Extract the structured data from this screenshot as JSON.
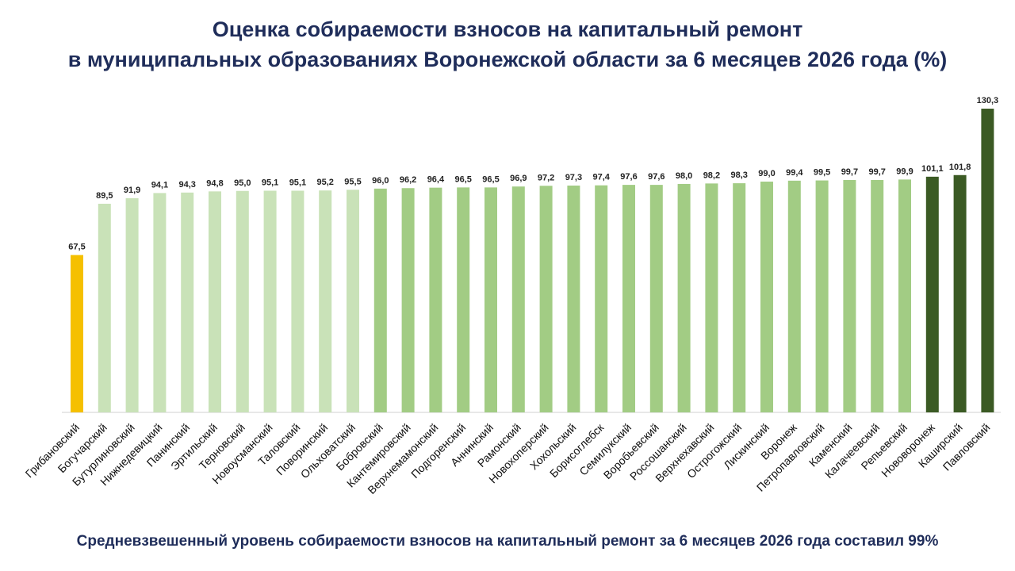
{
  "title": {
    "line1": "Оценка собираемости взносов на капитальный ремонт",
    "line2": "в муниципальных образованиях Воронежской области за 6 месяцев 2026 года (%)"
  },
  "footer": "Средневзвешенный уровень собираемости взносов на капитальный ремонт за 6 месяцев 2026 года составил 99%",
  "colors": {
    "low": "#f5c000",
    "light": "#c9e2b8",
    "mid": "#a2cc84",
    "dark": "#3b5a24"
  },
  "chart_data": {
    "type": "bar",
    "categories": [
      "Грибановский",
      "Богучарский",
      "Бутурлиновский",
      "Нижнедевицкий",
      "Панинский",
      "Эртильский",
      "Терновский",
      "Новоусманский",
      "Таловский",
      "Поворинский",
      "Ольховатский",
      "Бобровский",
      "Кантемировский",
      "Верхнемамонский",
      "Подгоренский",
      "Аннинский",
      "Рамонский",
      "Новохоперский",
      "Хохольский",
      "Борисоглебск",
      "Семилукский",
      "Воробьевский",
      "Россошанский",
      "Верхнехавский",
      "Острогожский",
      "Лискинский",
      "Воронеж",
      "Петропавловский",
      "Каменский",
      "Калачеевский",
      "Репьевский",
      "Нововоронеж",
      "Каширский",
      "Павловский"
    ],
    "values": [
      67.5,
      89.5,
      91.9,
      94.1,
      94.3,
      94.8,
      95.0,
      95.1,
      95.1,
      95.2,
      95.5,
      96.0,
      96.2,
      96.4,
      96.5,
      96.5,
      96.9,
      97.2,
      97.3,
      97.4,
      97.6,
      97.6,
      98.0,
      98.2,
      98.3,
      99.0,
      99.4,
      99.5,
      99.7,
      99.7,
      99.9,
      101.1,
      101.8,
      130.3
    ],
    "labels": [
      "67,5",
      "89,5",
      "91,9",
      "94,1",
      "94,3",
      "94,8",
      "95,0",
      "95,1",
      "95,1",
      "95,2",
      "95,5",
      "96,0",
      "96,2",
      "96,4",
      "96,5",
      "96,5",
      "96,9",
      "97,2",
      "97,3",
      "97,4",
      "97,6",
      "97,6",
      "98,0",
      "98,2",
      "98,3",
      "99,0",
      "99,4",
      "99,5",
      "99,7",
      "99,7",
      "99,9",
      "101,1",
      "101,8",
      "130,3"
    ],
    "color_groups": [
      "low",
      "light",
      "light",
      "light",
      "light",
      "light",
      "light",
      "light",
      "light",
      "light",
      "light",
      "mid",
      "mid",
      "mid",
      "mid",
      "mid",
      "mid",
      "mid",
      "mid",
      "mid",
      "mid",
      "mid",
      "mid",
      "mid",
      "mid",
      "mid",
      "mid",
      "mid",
      "mid",
      "mid",
      "mid",
      "dark",
      "dark",
      "dark"
    ],
    "ylim": [
      0,
      130.3
    ],
    "grid": false,
    "legend": "none"
  }
}
